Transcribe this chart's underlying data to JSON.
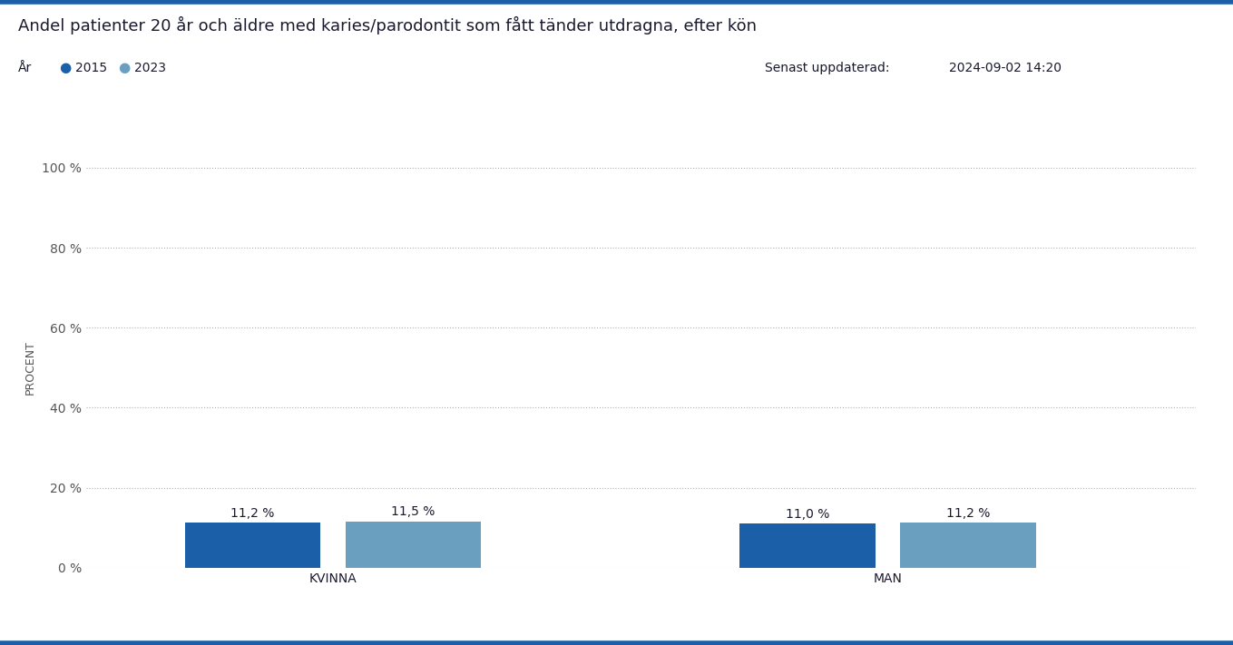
{
  "title": "Andel patienter 20 år och äldre med karies/parodontit som fått tänder utdragna, efter kön",
  "legend_label": "År",
  "legend_items": [
    "2015",
    "2023"
  ],
  "legend_colors": [
    "#1a5fa8",
    "#6a9fc0"
  ],
  "update_label": "Senast uppdaterad:",
  "update_date": "2024-09-02 14:20",
  "categories": [
    "KVINNA",
    "MAN"
  ],
  "values_2015": [
    11.2,
    11.0
  ],
  "values_2023": [
    11.5,
    11.2
  ],
  "labels_2015": [
    "11,2 %",
    "11,0 %"
  ],
  "labels_2023": [
    "11,5 %",
    "11,2 %"
  ],
  "color_2015": "#1a5fa8",
  "color_2023": "#6a9fc0",
  "ylabel": "PROCENT",
  "ylim": [
    0,
    100
  ],
  "yticks": [
    0,
    20,
    40,
    60,
    80,
    100
  ],
  "ytick_labels": [
    "0 %",
    "20 %",
    "40 %",
    "60 %",
    "80 %",
    "100 %"
  ],
  "background_color": "#ffffff",
  "grid_color": "#b0b0b0",
  "title_color": "#1a1a2e",
  "axis_label_color": "#555555",
  "border_color": "#1a5fa8",
  "group_centers": [
    0.3,
    0.75
  ],
  "bar_width": 0.11
}
